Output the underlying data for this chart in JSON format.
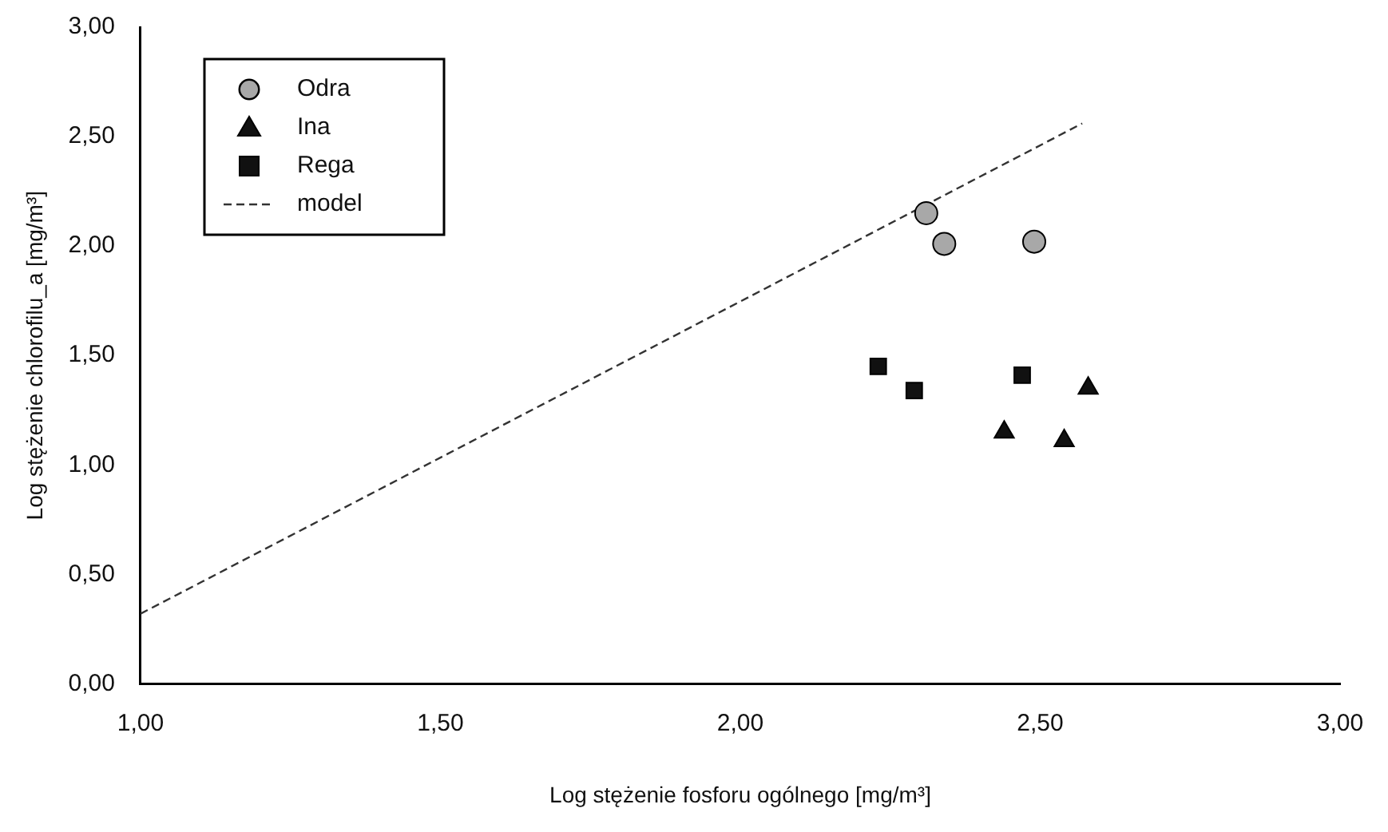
{
  "chart_data": {
    "type": "scatter",
    "xlabel": "Log stężenie fosforu ogólnego [mg/m³]",
    "ylabel": "Log stężenie chlorofilu_a [mg/m³]",
    "xlim": [
      1,
      3
    ],
    "xticks": [
      {
        "value": 1,
        "label": "1,00"
      },
      {
        "value": 1.5,
        "label": "1,50"
      },
      {
        "value": 2,
        "label": "2,00"
      },
      {
        "value": 2.5,
        "label": "2,50"
      },
      {
        "value": 3,
        "label": "3,00"
      }
    ],
    "ylim": [
      0,
      3
    ],
    "yticks": [
      {
        "value": 0,
        "label": "0,00"
      },
      {
        "value": 0.5,
        "label": "0,50"
      },
      {
        "value": 1,
        "label": "1,00"
      },
      {
        "value": 1.5,
        "label": "1,50"
      },
      {
        "value": 2,
        "label": "2,00"
      },
      {
        "value": 2.5,
        "label": "2,50"
      },
      {
        "value": 3,
        "label": "3,00"
      }
    ],
    "grid": false,
    "legend": "top left",
    "series": [
      {
        "name": "Odra",
        "marker": "circle",
        "color": "#a8a8a8",
        "x": [
          2.31,
          2.34,
          2.49
        ],
        "values": [
          2.15,
          2.01,
          2.02
        ]
      },
      {
        "name": "Ina",
        "marker": "triangle",
        "color": "#111111",
        "x": [
          2.44,
          2.54,
          2.58
        ],
        "values": [
          1.15,
          1.11,
          1.35
        ]
      },
      {
        "name": "Rega",
        "marker": "square",
        "color": "#111111",
        "x": [
          2.23,
          2.29,
          2.47
        ],
        "values": [
          1.45,
          1.34,
          1.41
        ]
      },
      {
        "name": "model",
        "type": "line",
        "marker": "none",
        "line_style": "dashed",
        "color": "#333333",
        "x": [
          1,
          2.57
        ],
        "values": [
          0.32,
          2.56
        ]
      }
    ]
  }
}
